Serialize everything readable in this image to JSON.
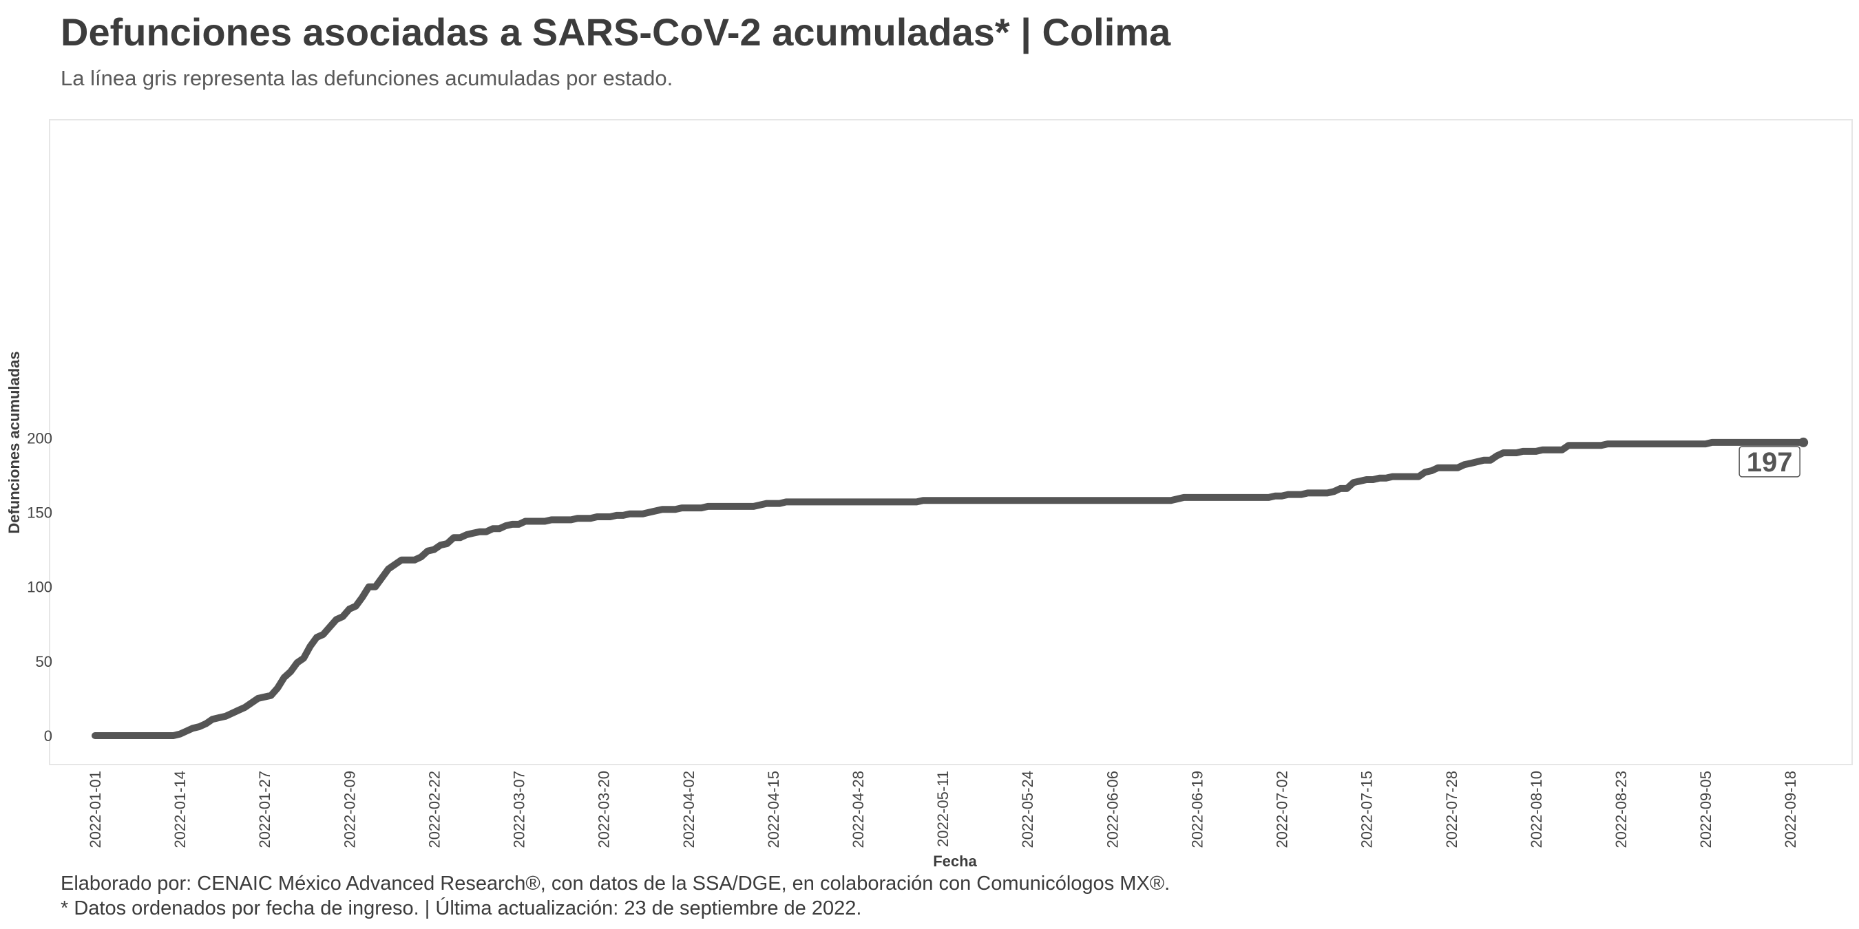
{
  "header": {
    "title": "Defunciones asociadas a SARS-CoV-2 acumuladas* | Colima",
    "subtitle": "La línea gris representa las defunciones acumuladas por estado."
  },
  "footer": {
    "line1": "Elaborado por: CENAIC México Advanced Research®, con datos de la SSA/DGE, en colaboración con Comunicólogos MX®.",
    "line2": "* Datos ordenados por fecha de ingreso. | Última actualización: 23 de septiembre de 2022."
  },
  "colors": {
    "line": "#555555",
    "panel_border": "#e6e6e6",
    "background": "#ffffff"
  },
  "chart_data": {
    "type": "line",
    "title": "Defunciones asociadas a SARS-CoV-2 acumuladas* | Colima",
    "xlabel": "Fecha",
    "ylabel": "Defunciones acumuladas",
    "x_ticks": [
      "2022-01-01",
      "2022-01-14",
      "2022-01-27",
      "2022-02-09",
      "2022-02-22",
      "2022-03-07",
      "2022-03-20",
      "2022-04-02",
      "2022-04-15",
      "2022-04-28",
      "2022-05-11",
      "2022-05-24",
      "2022-06-06",
      "2022-06-19",
      "2022-07-02",
      "2022-07-15",
      "2022-07-28",
      "2022-08-10",
      "2022-08-23",
      "2022-09-05",
      "2022-09-18"
    ],
    "y_ticks": [
      0,
      50,
      100,
      150,
      200
    ],
    "ylim": [
      0,
      200
    ],
    "grid": false,
    "end_label": "197",
    "series": [
      {
        "points": [
          [
            "2022-01-01",
            0
          ],
          [
            "2022-01-13",
            0
          ],
          [
            "2022-01-14",
            1
          ],
          [
            "2022-01-15",
            3
          ],
          [
            "2022-01-16",
            5
          ],
          [
            "2022-01-17",
            6
          ],
          [
            "2022-01-18",
            8
          ],
          [
            "2022-01-19",
            11
          ],
          [
            "2022-01-20",
            12
          ],
          [
            "2022-01-21",
            13
          ],
          [
            "2022-01-22",
            15
          ],
          [
            "2022-01-23",
            17
          ],
          [
            "2022-01-24",
            19
          ],
          [
            "2022-01-25",
            22
          ],
          [
            "2022-01-26",
            25
          ],
          [
            "2022-01-27",
            26
          ],
          [
            "2022-01-28",
            27
          ],
          [
            "2022-01-29",
            32
          ],
          [
            "2022-01-30",
            39
          ],
          [
            "2022-01-31",
            43
          ],
          [
            "2022-02-01",
            49
          ],
          [
            "2022-02-02",
            52
          ],
          [
            "2022-02-03",
            60
          ],
          [
            "2022-02-04",
            66
          ],
          [
            "2022-02-05",
            68
          ],
          [
            "2022-02-06",
            73
          ],
          [
            "2022-02-07",
            78
          ],
          [
            "2022-02-08",
            80
          ],
          [
            "2022-02-09",
            85
          ],
          [
            "2022-02-10",
            87
          ],
          [
            "2022-02-11",
            93
          ],
          [
            "2022-02-12",
            100
          ],
          [
            "2022-02-13",
            100
          ],
          [
            "2022-02-14",
            106
          ],
          [
            "2022-02-15",
            112
          ],
          [
            "2022-02-16",
            115
          ],
          [
            "2022-02-17",
            118
          ],
          [
            "2022-02-18",
            118
          ],
          [
            "2022-02-19",
            118
          ],
          [
            "2022-02-20",
            120
          ],
          [
            "2022-02-21",
            124
          ],
          [
            "2022-02-22",
            125
          ],
          [
            "2022-02-23",
            128
          ],
          [
            "2022-02-24",
            129
          ],
          [
            "2022-02-25",
            133
          ],
          [
            "2022-02-26",
            133
          ],
          [
            "2022-02-27",
            135
          ],
          [
            "2022-02-28",
            136
          ],
          [
            "2022-03-01",
            137
          ],
          [
            "2022-03-02",
            137
          ],
          [
            "2022-03-03",
            139
          ],
          [
            "2022-03-04",
            139
          ],
          [
            "2022-03-05",
            141
          ],
          [
            "2022-03-06",
            142
          ],
          [
            "2022-03-07",
            142
          ],
          [
            "2022-03-08",
            144
          ],
          [
            "2022-03-11",
            144
          ],
          [
            "2022-03-12",
            145
          ],
          [
            "2022-03-15",
            145
          ],
          [
            "2022-03-16",
            146
          ],
          [
            "2022-03-18",
            146
          ],
          [
            "2022-03-19",
            147
          ],
          [
            "2022-03-21",
            147
          ],
          [
            "2022-03-22",
            148
          ],
          [
            "2022-03-23",
            148
          ],
          [
            "2022-03-24",
            149
          ],
          [
            "2022-03-26",
            149
          ],
          [
            "2022-03-27",
            150
          ],
          [
            "2022-03-29",
            152
          ],
          [
            "2022-03-31",
            152
          ],
          [
            "2022-04-01",
            153
          ],
          [
            "2022-04-04",
            153
          ],
          [
            "2022-04-05",
            154
          ],
          [
            "2022-04-12",
            154
          ],
          [
            "2022-04-14",
            156
          ],
          [
            "2022-04-16",
            156
          ],
          [
            "2022-04-17",
            157
          ],
          [
            "2022-05-07",
            157
          ],
          [
            "2022-05-08",
            158
          ],
          [
            "2022-06-15",
            158
          ],
          [
            "2022-06-17",
            160
          ],
          [
            "2022-06-30",
            160
          ],
          [
            "2022-07-01",
            161
          ],
          [
            "2022-07-02",
            161
          ],
          [
            "2022-07-03",
            162
          ],
          [
            "2022-07-05",
            162
          ],
          [
            "2022-07-06",
            163
          ],
          [
            "2022-07-09",
            163
          ],
          [
            "2022-07-10",
            164
          ],
          [
            "2022-07-11",
            166
          ],
          [
            "2022-07-12",
            166
          ],
          [
            "2022-07-13",
            170
          ],
          [
            "2022-07-15",
            172
          ],
          [
            "2022-07-16",
            172
          ],
          [
            "2022-07-17",
            173
          ],
          [
            "2022-07-18",
            173
          ],
          [
            "2022-07-19",
            174
          ],
          [
            "2022-07-23",
            174
          ],
          [
            "2022-07-24",
            177
          ],
          [
            "2022-07-25",
            178
          ],
          [
            "2022-07-26",
            180
          ],
          [
            "2022-07-29",
            180
          ],
          [
            "2022-07-30",
            182
          ],
          [
            "2022-07-31",
            183
          ],
          [
            "2022-08-01",
            184
          ],
          [
            "2022-08-02",
            185
          ],
          [
            "2022-08-03",
            185
          ],
          [
            "2022-08-04",
            188
          ],
          [
            "2022-08-05",
            190
          ],
          [
            "2022-08-07",
            190
          ],
          [
            "2022-08-08",
            191
          ],
          [
            "2022-08-10",
            191
          ],
          [
            "2022-08-11",
            192
          ],
          [
            "2022-08-14",
            192
          ],
          [
            "2022-08-15",
            195
          ],
          [
            "2022-08-20",
            195
          ],
          [
            "2022-08-21",
            196
          ],
          [
            "2022-09-05",
            196
          ],
          [
            "2022-09-06",
            197
          ],
          [
            "2022-09-20",
            197
          ]
        ]
      }
    ]
  }
}
